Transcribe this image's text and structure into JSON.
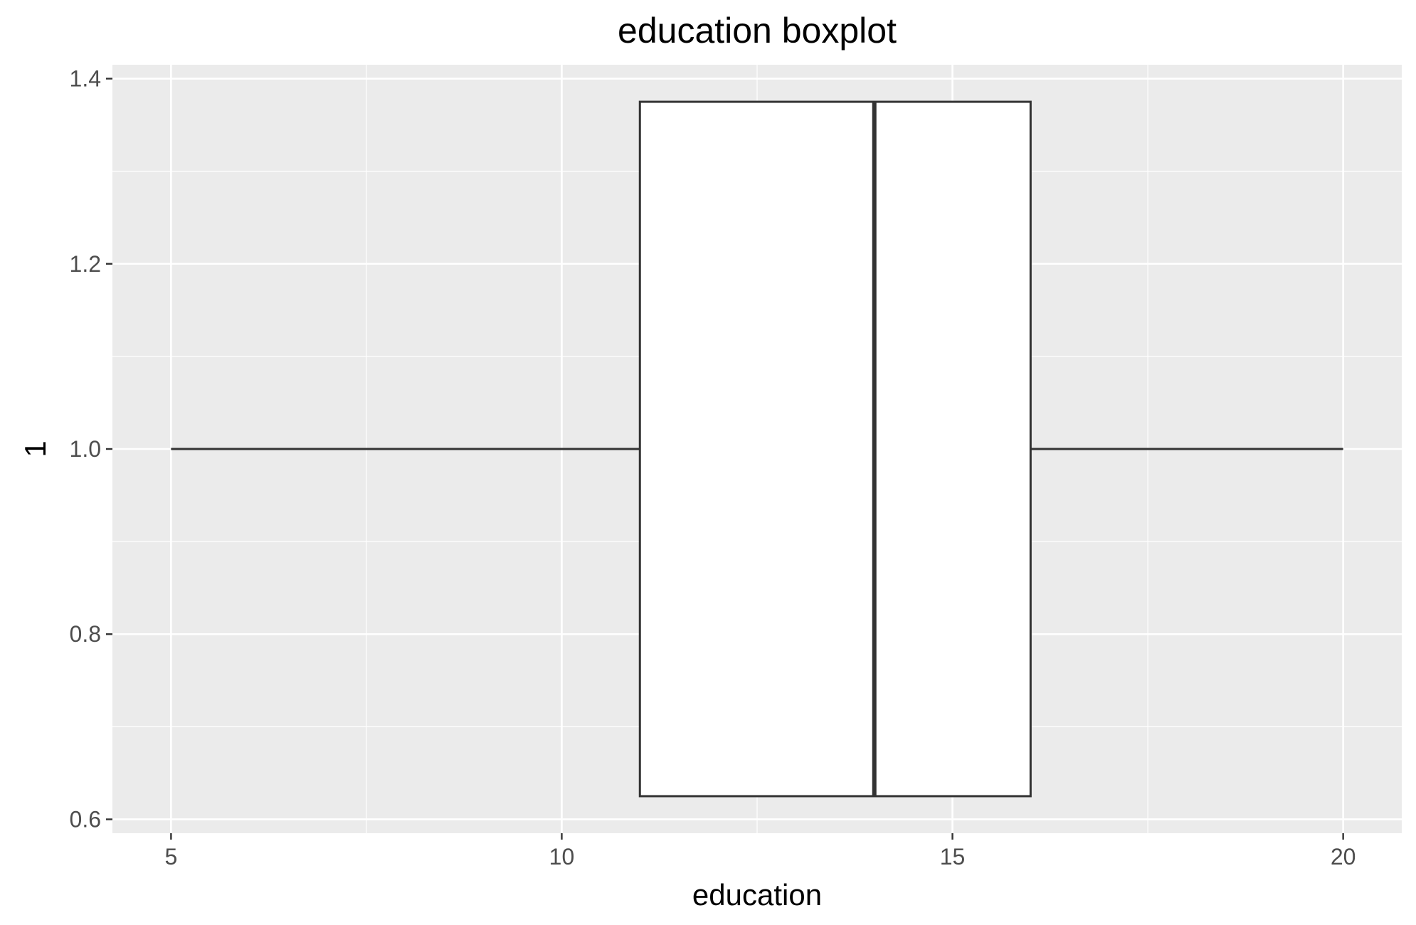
{
  "chart_data": {
    "type": "boxplot",
    "orientation": "horizontal",
    "title": "education boxplot",
    "xlabel": "education",
    "ylabel": "1",
    "xlim": [
      4.25,
      20.75
    ],
    "ylim": [
      0.585,
      1.415
    ],
    "x_ticks": [
      5,
      10,
      15,
      20
    ],
    "x_tick_labels": [
      "5",
      "10",
      "15",
      "20"
    ],
    "y_ticks": [
      0.6,
      0.8,
      1.0,
      1.2,
      1.4
    ],
    "y_tick_labels": [
      "0.6",
      "0.8",
      "1.0",
      "1.2",
      "1.4"
    ],
    "box": {
      "y": 1.0,
      "ymin": 0.625,
      "ymax": 1.375,
      "whisker_low": 5,
      "q1": 11,
      "median": 14,
      "q3": 16,
      "whisker_high": 20
    },
    "grid": true,
    "legend": "none",
    "colors": {
      "panel": "#ebebeb",
      "grid": "#ffffff",
      "box_fill": "#ffffff",
      "box_stroke": "#333333",
      "tick_text": "#4d4d4d"
    }
  }
}
